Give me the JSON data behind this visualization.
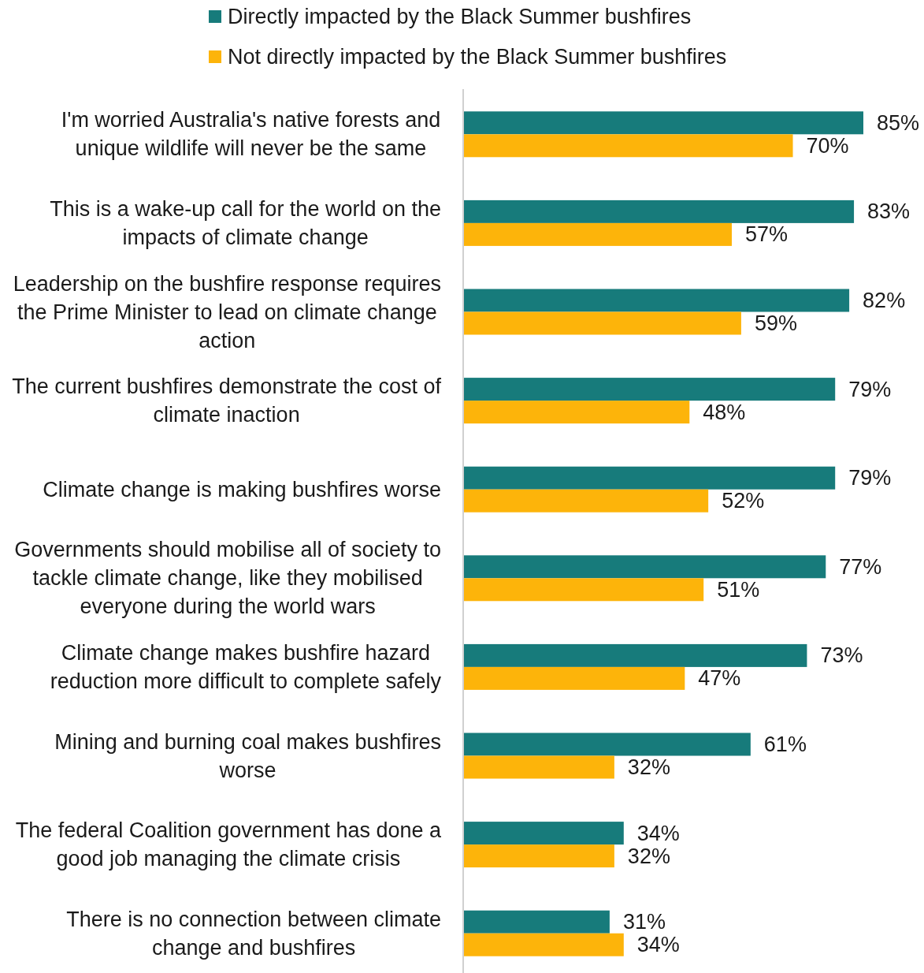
{
  "chart_data": {
    "type": "bar",
    "orientation": "horizontal",
    "legend": "top",
    "categories": [
      "I'm worried Australia's native forests and unique wildlife will never be the same",
      "This is a wake-up call for the world on the impacts of climate change",
      "Leadership on the bushfire response requires the Prime Minister to lead on climate change action",
      "The current bushfires demonstrate the cost of climate inaction",
      "Climate change is making bushfires worse",
      "Governments should mobilise all of society to tackle climate change, like they mobilised everyone during the world wars",
      "Climate change makes bushfire hazard reduction more difficult to complete safely",
      "Mining and burning coal makes bushfires worse",
      "The federal Coalition government has done a good job managing the climate crisis",
      "There is no connection between climate change and bushfires"
    ],
    "series": [
      {
        "name": "Directly impacted by the Black Summer bushfires",
        "color": "#177b7b",
        "values": [
          85,
          83,
          82,
          79,
          79,
          77,
          73,
          61,
          34,
          31
        ],
        "value_labels": [
          "85%",
          "83%",
          "82%",
          "79%",
          "79%",
          "77%",
          "73%",
          "61%",
          "34%",
          "31%"
        ]
      },
      {
        "name": "Not directly impacted by the Black Summer bushfires",
        "color": "#fdb40a",
        "values": [
          70,
          57,
          59,
          48,
          52,
          51,
          47,
          32,
          32,
          34
        ],
        "value_labels": [
          "70%",
          "57%",
          "59%",
          "48%",
          "52%",
          "51%",
          "47%",
          "32%",
          "32%",
          "34%"
        ]
      }
    ]
  }
}
